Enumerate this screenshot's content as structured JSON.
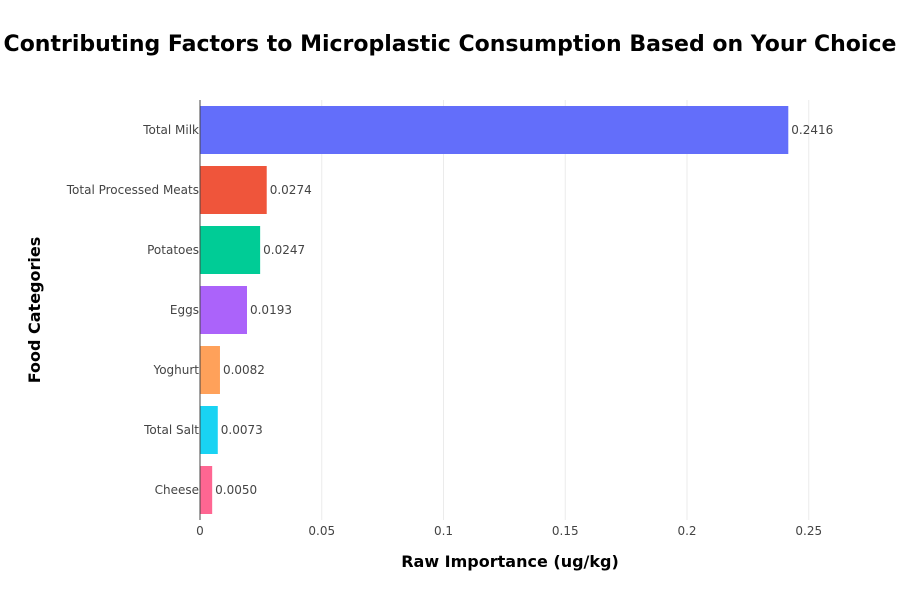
{
  "chart_data": {
    "type": "bar",
    "orientation": "horizontal",
    "title": "Contributing Factors to Microplastic Consumption Based on Your Choice",
    "xlabel": "Raw Importance (ug/kg)",
    "ylabel": "Food Categories",
    "xlim": [
      0,
      0.26
    ],
    "xticks": [
      0,
      0.05,
      0.1,
      0.15,
      0.2,
      0.25
    ],
    "xtick_labels": [
      "0",
      "0.05",
      "0.1",
      "0.15",
      "0.2",
      "0.25"
    ],
    "grid": true,
    "categories": [
      "Total Milk",
      "Total Processed Meats",
      "Potatoes",
      "Eggs",
      "Yoghurt",
      "Total Salt",
      "Cheese"
    ],
    "values": [
      0.2416,
      0.0274,
      0.0247,
      0.0193,
      0.0082,
      0.0073,
      0.005
    ],
    "data_labels": [
      "0.2416",
      "0.0274",
      "0.0247",
      "0.0193",
      "0.0082",
      "0.0073",
      "0.0050"
    ],
    "colors": [
      "#636efa",
      "#ef553b",
      "#00cc96",
      "#ab63fa",
      "#ffa15a",
      "#19d3f3",
      "#ff6692"
    ]
  }
}
